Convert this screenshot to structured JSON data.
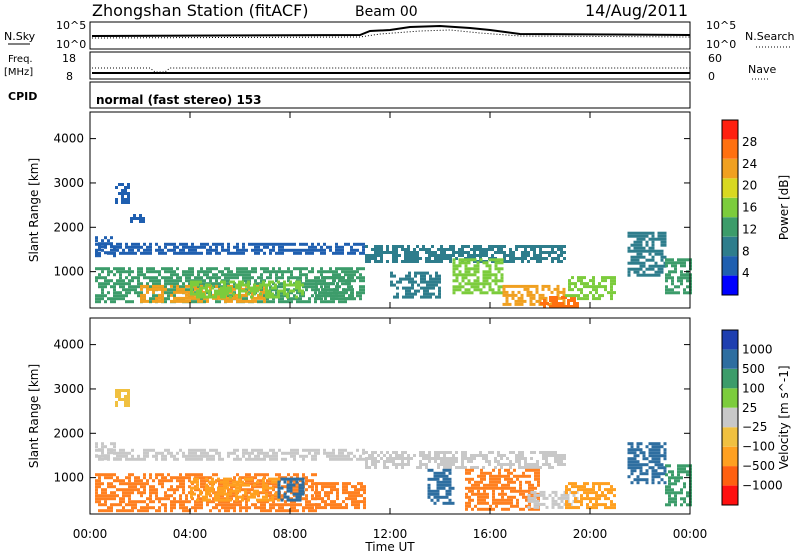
{
  "header": {
    "station": "Zhongshan Station (fitACF)",
    "beam": "Beam 00",
    "date": "14/Aug/2011"
  },
  "status_panels": {
    "nsky": {
      "label": "N.Sky",
      "tick_top": "10^5",
      "tick_bottom": "10^0"
    },
    "nsearch": {
      "label": "N.Search",
      "tick_top": "10^5",
      "tick_bottom": "10^0"
    },
    "freq": {
      "label_line1": "Freq.",
      "label_line2": "[MHz]",
      "tick_top": "18",
      "tick_bottom": "8"
    },
    "nave": {
      "label": "Nave",
      "tick_top": "60",
      "tick_bottom": "0"
    },
    "cpid": {
      "label": "CPID",
      "mode": "normal (fast stereo) 153"
    }
  },
  "chart_data": [
    {
      "type": "heatmap",
      "title": "",
      "xlabel": "",
      "ylabel": "Slant Range [km]",
      "x_ticks": [
        "00:00",
        "04:00",
        "08:00",
        "12:00",
        "16:00",
        "20:00",
        "00:00"
      ],
      "y_ticks": [
        "1000",
        "2000",
        "3000",
        "4000"
      ],
      "xlim": [
        0,
        24
      ],
      "ylim": [
        180,
        4600
      ],
      "colorbar": {
        "label": "Power [dB]",
        "ticks": [
          "4",
          "8",
          "12",
          "16",
          "20",
          "24",
          "28"
        ],
        "range": [
          0,
          30
        ],
        "colors": [
          "#0000ff",
          "#1f5fb0",
          "#2e7d8c",
          "#3c9c6a",
          "#7ccc3c",
          "#d8d820",
          "#f0a020",
          "#ff7010",
          "#ff2010"
        ]
      },
      "patches": [
        {
          "t0": 0.2,
          "t1": 1.0,
          "r0": 1350,
          "r1": 1800,
          "level": 6
        },
        {
          "t0": 1.0,
          "t1": 1.6,
          "r0": 2550,
          "r1": 3000,
          "level": 6
        },
        {
          "t0": 1.6,
          "t1": 2.2,
          "r0": 2100,
          "r1": 2300,
          "level": 6
        },
        {
          "t0": 0.2,
          "t1": 11.0,
          "r0": 1400,
          "r1": 1650,
          "level": 6
        },
        {
          "t0": 0.2,
          "t1": 11.0,
          "r0": 300,
          "r1": 1100,
          "level": 10
        },
        {
          "t0": 2.0,
          "t1": 7.0,
          "r0": 300,
          "r1": 700,
          "level": 22
        },
        {
          "t0": 4.0,
          "t1": 7.0,
          "r0": 400,
          "r1": 800,
          "level": 16
        },
        {
          "t0": 7.0,
          "t1": 8.5,
          "r0": 400,
          "r1": 800,
          "level": 14
        },
        {
          "t0": 9.0,
          "t1": 10.5,
          "r0": 400,
          "r1": 900,
          "level": 12
        },
        {
          "t0": 11.0,
          "t1": 19.0,
          "r0": 1200,
          "r1": 1600,
          "level": 7
        },
        {
          "t0": 12.0,
          "t1": 14.0,
          "r0": 400,
          "r1": 1000,
          "level": 9
        },
        {
          "t0": 14.5,
          "t1": 16.5,
          "r0": 500,
          "r1": 1300,
          "level": 14
        },
        {
          "t0": 16.5,
          "t1": 19.0,
          "r0": 250,
          "r1": 700,
          "level": 20
        },
        {
          "t0": 18.0,
          "t1": 19.5,
          "r0": 200,
          "r1": 450,
          "level": 26
        },
        {
          "t0": 19.0,
          "t1": 21.0,
          "r0": 400,
          "r1": 900,
          "level": 14
        },
        {
          "t0": 21.5,
          "t1": 23.0,
          "r0": 900,
          "r1": 1900,
          "level": 9
        },
        {
          "t0": 23.0,
          "t1": 24.0,
          "r0": 500,
          "r1": 1300,
          "level": 12
        }
      ]
    },
    {
      "type": "heatmap",
      "title": "",
      "xlabel": "Time UT",
      "ylabel": "Slant Range [km]",
      "x_ticks": [
        "00:00",
        "04:00",
        "08:00",
        "12:00",
        "16:00",
        "20:00",
        "00:00"
      ],
      "y_ticks": [
        "1000",
        "2000",
        "3000",
        "4000"
      ],
      "xlim": [
        0,
        24
      ],
      "ylim": [
        180,
        4600
      ],
      "colorbar": {
        "label": "Velocity [m s^-1]",
        "ticks": [
          "1000",
          "500",
          "100",
          "25",
          "−25",
          "−100",
          "−500",
          "−1000"
        ],
        "colors": [
          "#1f3fb0",
          "#2e6ea0",
          "#3c9c6a",
          "#7ccc3c",
          "#c8c8c8",
          "#f0c040",
          "#ffa020",
          "#ff6010",
          "#ff1010"
        ]
      },
      "patches": [
        {
          "t0": 0.2,
          "t1": 1.0,
          "r0": 1400,
          "r1": 1800,
          "level": "#c8c8c8"
        },
        {
          "t0": 1.0,
          "t1": 1.6,
          "r0": 2600,
          "r1": 3000,
          "level": "#f0c040"
        },
        {
          "t0": 0.2,
          "t1": 11.0,
          "r0": 1400,
          "r1": 1650,
          "level": "#c8c8c8"
        },
        {
          "t0": 0.2,
          "t1": 9.0,
          "r0": 250,
          "r1": 1100,
          "level": "#ff8020"
        },
        {
          "t0": 4.0,
          "t1": 7.5,
          "r0": 500,
          "r1": 1000,
          "level": "#ffa020"
        },
        {
          "t0": 7.5,
          "t1": 8.5,
          "r0": 500,
          "r1": 1000,
          "level": "#2e6ea0"
        },
        {
          "t0": 9.0,
          "t1": 11.0,
          "r0": 300,
          "r1": 900,
          "level": "#ff8020"
        },
        {
          "t0": 11.0,
          "t1": 19.0,
          "r0": 1200,
          "r1": 1600,
          "level": "#c8c8c8"
        },
        {
          "t0": 13.5,
          "t1": 14.5,
          "r0": 400,
          "r1": 1200,
          "level": "#2e6ea0"
        },
        {
          "t0": 15.0,
          "t1": 18.0,
          "r0": 300,
          "r1": 1200,
          "level": "#ff8020"
        },
        {
          "t0": 17.5,
          "t1": 19.5,
          "r0": 300,
          "r1": 700,
          "level": "#c8c8c8"
        },
        {
          "t0": 19.0,
          "t1": 21.0,
          "r0": 300,
          "r1": 900,
          "level": "#ffa020"
        },
        {
          "t0": 21.5,
          "t1": 23.0,
          "r0": 900,
          "r1": 1800,
          "level": "#2e6ea0"
        },
        {
          "t0": 23.0,
          "t1": 24.0,
          "r0": 400,
          "r1": 1300,
          "level": "#3c9c6a"
        }
      ]
    }
  ]
}
